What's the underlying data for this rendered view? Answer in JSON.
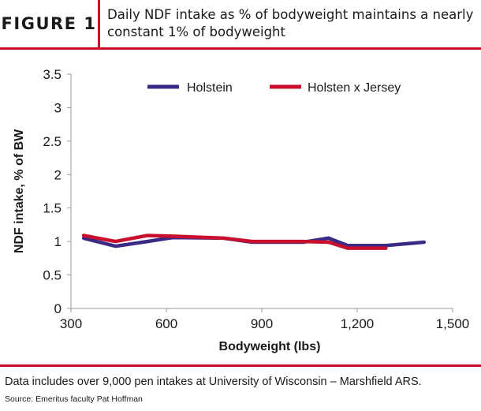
{
  "figure": {
    "label": "FIGURE 1",
    "title": "Daily NDF intake as % of bodyweight maintains a nearly constant 1% of bodyweight",
    "accent_color": "#c8102e"
  },
  "footer": {
    "note": "Data includes over 9,000 pen intakes at University of Wisconsin – Marshfield ARS.",
    "source": "Source: Emeritus faculty Pat Hoffman"
  },
  "chart_data": {
    "type": "line",
    "title": "",
    "xlabel": "Bodyweight (lbs)",
    "ylabel": "NDF intake, % of BW",
    "xlim": [
      300,
      1500
    ],
    "ylim": [
      0,
      3.5
    ],
    "xticks": [
      300,
      600,
      900,
      1200,
      1500
    ],
    "xtick_labels": [
      "300",
      "600",
      "900",
      "1,200",
      "1,500"
    ],
    "yticks": [
      0,
      0.5,
      1,
      1.5,
      2,
      2.5,
      3,
      3.5
    ],
    "ytick_labels": [
      "0",
      "0.5",
      "1",
      "1.5",
      "2",
      "2.5",
      "3",
      "3.5"
    ],
    "grid": false,
    "legend_position": "top",
    "series": [
      {
        "name": "Holstein",
        "color": "#3a2a86",
        "x": [
          340,
          440,
          540,
          620,
          780,
          870,
          1030,
          1110,
          1170,
          1290,
          1410
        ],
        "y": [
          1.05,
          0.93,
          1.0,
          1.06,
          1.05,
          0.99,
          0.99,
          1.05,
          0.94,
          0.94,
          0.99
        ]
      },
      {
        "name": "Holsten x Jersey",
        "color": "#c8102e",
        "x": [
          340,
          440,
          540,
          620,
          780,
          870,
          1030,
          1110,
          1170,
          1290
        ],
        "y": [
          1.09,
          1.0,
          1.09,
          1.08,
          1.05,
          1.0,
          1.0,
          0.99,
          0.9,
          0.9
        ]
      }
    ]
  }
}
